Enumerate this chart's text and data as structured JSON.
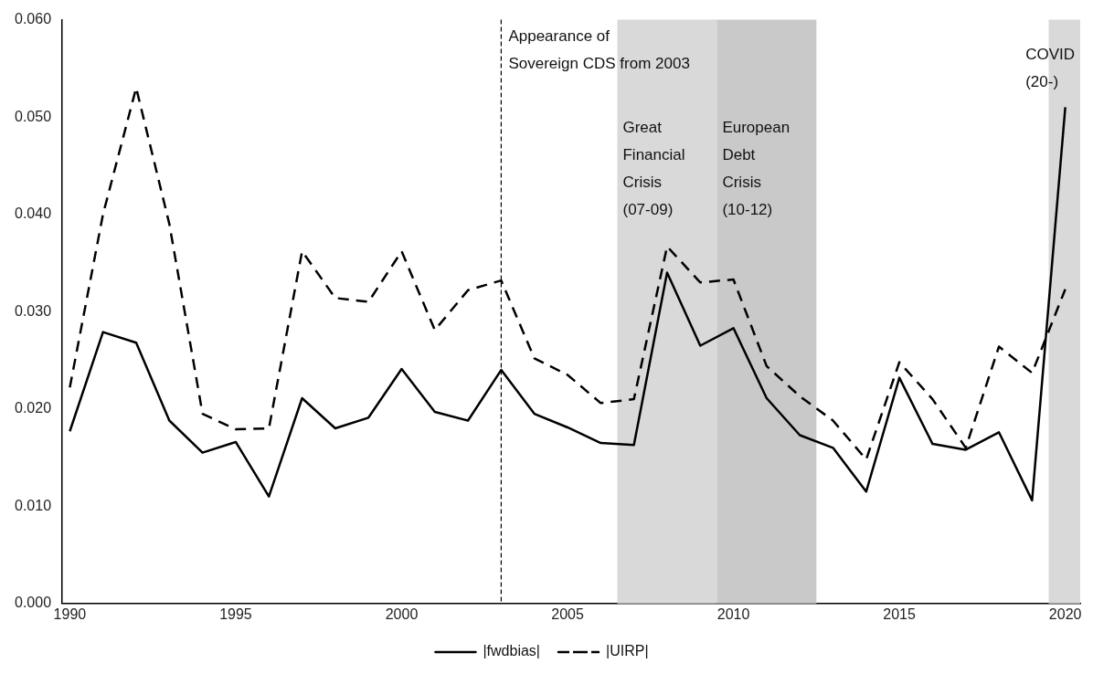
{
  "chart_data": {
    "type": "line",
    "x": [
      1990,
      1991,
      1992,
      1993,
      1994,
      1995,
      1996,
      1997,
      1998,
      1999,
      2000,
      2001,
      2002,
      2003,
      2004,
      2005,
      2006,
      2007,
      2008,
      2009,
      2010,
      2011,
      2012,
      2013,
      2014,
      2015,
      2016,
      2017,
      2018,
      2019,
      2020
    ],
    "series": [
      {
        "name": "|fwdbias|",
        "color": "#000000",
        "line_style": "solid",
        "values": [
          0.0177,
          0.0279,
          0.0268,
          0.0188,
          0.0155,
          0.0166,
          0.011,
          0.0211,
          0.018,
          0.0191,
          0.0241,
          0.0197,
          0.0188,
          0.024,
          0.0195,
          0.0181,
          0.0165,
          0.0163,
          0.034,
          0.0265,
          0.0283,
          0.0211,
          0.0173,
          0.016,
          0.0115,
          0.0232,
          0.0164,
          0.0158,
          0.0176,
          0.0106,
          0.051
        ]
      },
      {
        "name": "|UIRP|",
        "color": "#000000",
        "line_style": "dashed",
        "values": [
          0.0222,
          0.04,
          0.053,
          0.039,
          0.0195,
          0.0179,
          0.018,
          0.0362,
          0.0314,
          0.031,
          0.0362,
          0.0281,
          0.0322,
          0.0332,
          0.0252,
          0.0235,
          0.0206,
          0.021,
          0.0367,
          0.033,
          0.0333,
          0.0244,
          0.0213,
          0.0188,
          0.0148,
          0.0248,
          0.021,
          0.016,
          0.0264,
          0.0237,
          0.0323
        ]
      }
    ],
    "xlim": [
      1989.77,
      2020.45
    ],
    "xticks": [
      1990,
      1995,
      2000,
      2005,
      2010,
      2015,
      2020
    ],
    "ylim": [
      0,
      0.06
    ],
    "yticks": [
      {
        "value": 0,
        "label": "0.000"
      },
      {
        "value": 0.01,
        "label": "0.010"
      },
      {
        "value": 0.02,
        "label": "0.020"
      },
      {
        "value": 0.03,
        "label": "0.030"
      },
      {
        "value": 0.04,
        "label": "0.040"
      },
      {
        "value": 0.05,
        "label": "0.050"
      },
      {
        "value": 0.06,
        "label": "0.060"
      }
    ],
    "ref_lines": [
      {
        "axis": "x",
        "value": 2003,
        "label": "Appearance of\nSovereign CDS from 2003",
        "color": "#000000",
        "line_style": "dashed"
      }
    ],
    "bands": [
      {
        "axis": "x",
        "from": 2006.5,
        "to": 2009.5,
        "label": "Great\nFinancial\nCrisis\n(07-09)",
        "color": "#d9d9d9"
      },
      {
        "axis": "x",
        "from": 2009.5,
        "to": 2012.5,
        "label": "European\nDebt\nCrisis\n(10-12)",
        "color": "#c9c9c9"
      },
      {
        "axis": "x",
        "from": 2019.5,
        "to": 2020.45,
        "label": "COVID\n(20-)",
        "color": "#d9d9d9"
      }
    ],
    "grid": false,
    "legend": "bottom",
    "marker": "none"
  }
}
